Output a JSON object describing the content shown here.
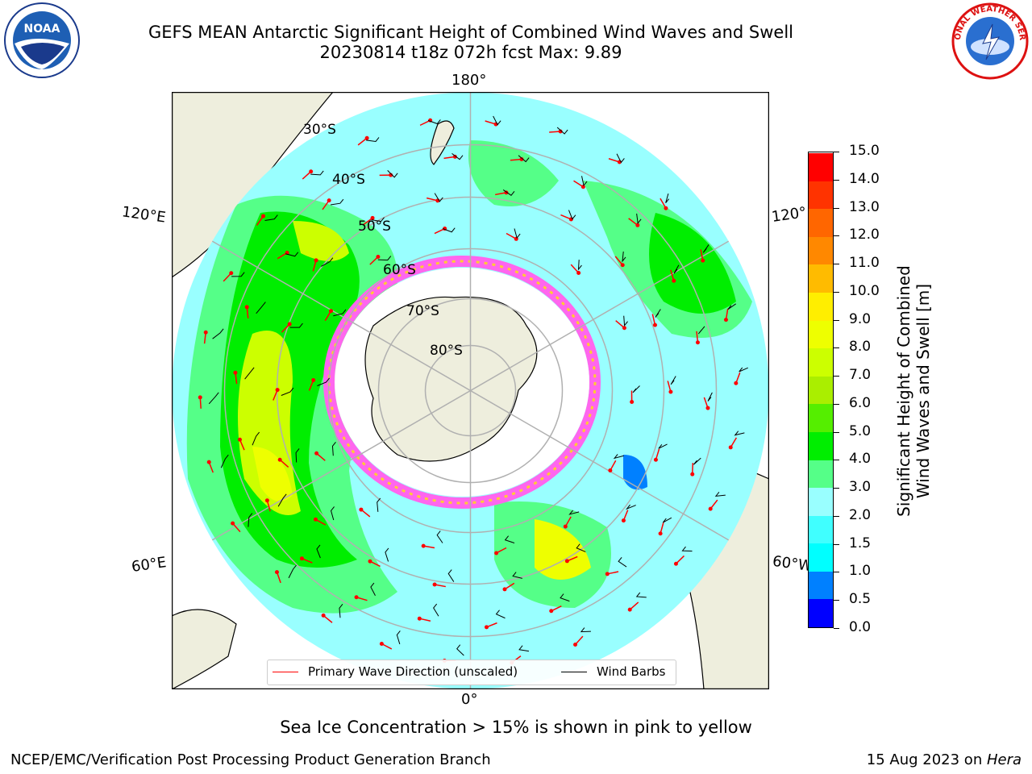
{
  "title": {
    "line1": "GEFS MEAN Antarctic Significant Height of Combined Wind Waves and Swell",
    "line2": "20230814 t18z 072h fcst   Max: 9.89"
  },
  "logos": {
    "noaa_text": "NOAA",
    "nws_text": "NATIONAL WEATHER SERVICE"
  },
  "map": {
    "lon_labels": {
      "top": "180°",
      "bottom": "0°",
      "left_upper": "120°E",
      "left_lower": "60°E",
      "right_upper": "120°",
      "right_lower": "60°W"
    },
    "lat_labels": [
      "30°S",
      "40°S",
      "50°S",
      "60°S",
      "70°S",
      "80°S"
    ],
    "colors": {
      "land": "#eeeedd",
      "ocean_low": "#99ffff",
      "ice_pink": "#ff66ee"
    }
  },
  "legend": {
    "wave_label": "Primary Wave Direction (unscaled)",
    "wind_label": "Wind Barbs",
    "wave_color": "#ff0000",
    "wind_color": "#000000"
  },
  "colorbar": {
    "label_line1": "Significant Height of Combined",
    "label_line2": "Wind Waves and Swell [m]",
    "ticks": [
      "0.0",
      "0.5",
      "1.0",
      "1.5",
      "2.0",
      "3.0",
      "4.0",
      "5.0",
      "6.0",
      "7.0",
      "8.0",
      "9.0",
      "10.0",
      "11.0",
      "12.0",
      "13.0",
      "14.0",
      "15.0"
    ],
    "colors": [
      "#0000ff",
      "#0080ff",
      "#00ffff",
      "#40ffff",
      "#99ffff",
      "#55ff88",
      "#00ee00",
      "#55ee00",
      "#aaee00",
      "#ccff00",
      "#eeff00",
      "#ffee00",
      "#ffbb00",
      "#ff8800",
      "#ff6600",
      "#ff3300",
      "#ff0000"
    ]
  },
  "footnote": "Sea Ice Concentration > 15% is shown in pink to yellow",
  "credits": {
    "branch": "NCEP/EMC/Verification Post Processing Product Generation Branch",
    "date_prefix": "15 Aug 2023 on ",
    "machine": "Hera"
  }
}
